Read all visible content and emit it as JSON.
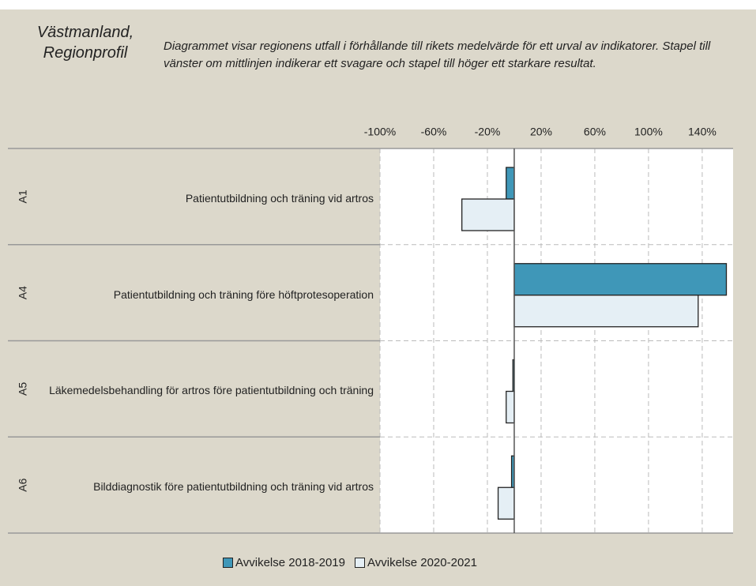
{
  "chart_data": {
    "type": "bar",
    "title": "Västmanland, Regionprofil",
    "subtitle": "Diagrammet visar regionens utfall i förhållande till rikets medelvärde för ett urval av indikatorer. Stapel till vänster om mittlinjen indikerar ett svagare och stapel till höger ett starkare resultat.",
    "codes": [
      "A1",
      "A4",
      "A5",
      "A6"
    ],
    "categories": [
      "Patientutbildning och träning vid artros",
      "Patientutbildning och träning före höftprotesoperation",
      "Läkemedelsbehandling för artros före patientutbildning och träning",
      "Bilddiagnostik före patientutbildning och träning vid artros"
    ],
    "series": [
      {
        "name": "Avvikelse 2018-2019",
        "color": "#3f97b8",
        "values": [
          -6,
          158,
          -1,
          -2
        ]
      },
      {
        "name": "Avvikelse 2020-2021",
        "color": "#e5eff5",
        "values": [
          -39,
          137,
          -6,
          -12
        ]
      }
    ],
    "xlim": [
      -100,
      163
    ],
    "xticks": [
      {
        "value": -100,
        "label": "-100%"
      },
      {
        "value": -60,
        "label": "-60%"
      },
      {
        "value": -20,
        "label": "-20%"
      },
      {
        "value": 20,
        "label": "20%"
      },
      {
        "value": 60,
        "label": "60%"
      },
      {
        "value": 100,
        "label": "100%"
      },
      {
        "value": 140,
        "label": "140%"
      }
    ],
    "grid": true,
    "legend": "bottom"
  }
}
